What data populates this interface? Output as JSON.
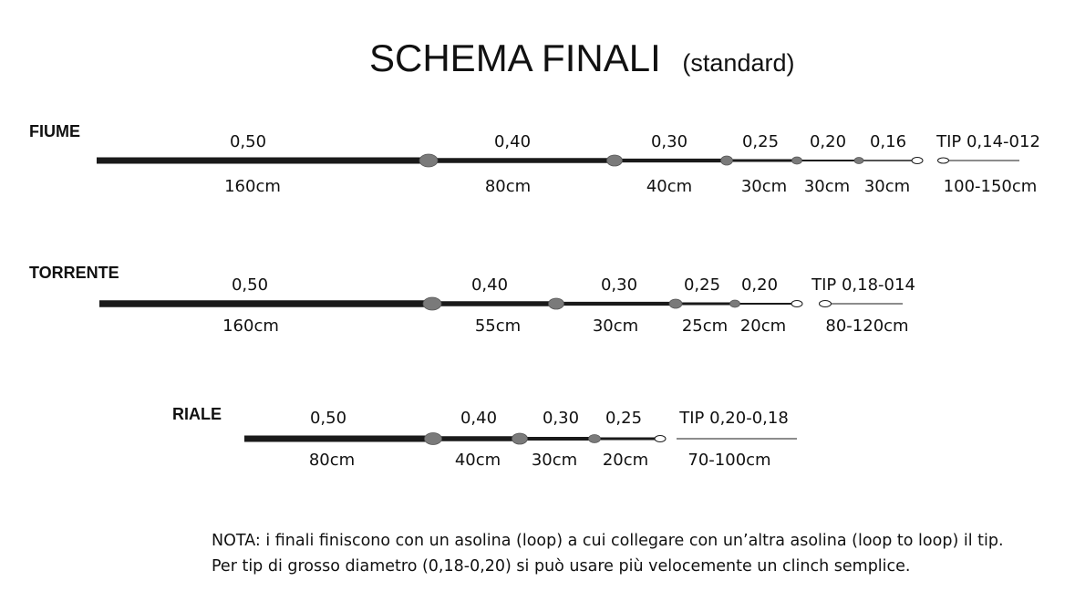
{
  "title": {
    "main": "SCHEMA FINALI",
    "sub": "(standard)"
  },
  "colors": {
    "line": "#1a1a1a",
    "knot": "#7a7a7a",
    "loop_fill": "#ffffff",
    "text": "#111111"
  },
  "sections": [
    {
      "name": "FIUME",
      "segments": [
        {
          "diameter": "0,50",
          "length": "160cm"
        },
        {
          "diameter": "0,40",
          "length": "80cm"
        },
        {
          "diameter": "0,30",
          "length": "40cm"
        },
        {
          "diameter": "0,25",
          "length": "30cm"
        },
        {
          "diameter": "0,20",
          "length": "30cm"
        },
        {
          "diameter": "0,16",
          "length": "30cm"
        }
      ],
      "tip": {
        "label": "TIP 0,14-012",
        "length": "100-150cm"
      }
    },
    {
      "name": "TORRENTE",
      "segments": [
        {
          "diameter": "0,50",
          "length": "160cm"
        },
        {
          "diameter": "0,40",
          "length": "55cm"
        },
        {
          "diameter": "0,30",
          "length": "30cm"
        },
        {
          "diameter": "0,25",
          "length": "25cm"
        },
        {
          "diameter": "0,20",
          "length": "20cm"
        }
      ],
      "tip": {
        "label": "TIP 0,18-014",
        "length": "80-120cm"
      }
    },
    {
      "name": "RIALE",
      "segments": [
        {
          "diameter": "0,50",
          "length": "80cm"
        },
        {
          "diameter": "0,40",
          "length": "40cm"
        },
        {
          "diameter": "0,30",
          "length": "30cm"
        },
        {
          "diameter": "0,25",
          "length": "20cm"
        }
      ],
      "tip": {
        "label": "TIP 0,20-0,18",
        "length": "70-100cm"
      }
    }
  ],
  "note": {
    "line1": "NOTA: i finali finiscono con un asolina (loop) a cui collegare con un’altra asolina (loop to loop) il tip.",
    "line2": "Per tip di grosso diametro (0,18-0,20) si può usare più velocemente un clinch semplice."
  }
}
